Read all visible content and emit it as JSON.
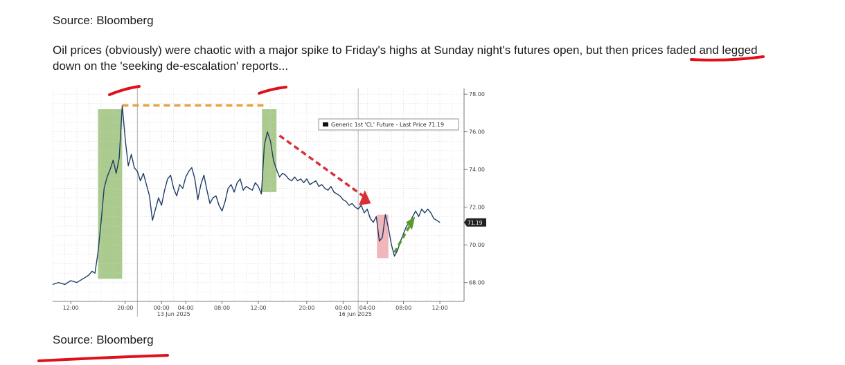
{
  "header": {
    "source": "Source: Bloomberg"
  },
  "paragraph": {
    "text_before": "Oil prices (obviously) were chaotic with a major spike to Friday's highs at Sunday night's futures open, but then ",
    "highlight": "prices faded",
    "text_after": " and legged down on the 'seeking de-escalation' reports..."
  },
  "footer": {
    "source": "Source: Bloomberg"
  },
  "colors": {
    "line": "#1f3d66",
    "green_band": "#9cc27a",
    "red_band": "#f0a8ae",
    "orange_dash": "#e8a040",
    "red_arrow": "#d8303a",
    "green_arrow": "#5a9a2a",
    "marker_red": "#e0101a"
  },
  "chart_data": {
    "type": "line",
    "legend": "Generic 1st 'CL' Future - Last Price 71.19",
    "last_price_label": "71.19",
    "last_price": 71.19,
    "ylim": [
      67.0,
      78.3
    ],
    "yticks": [
      "78.00",
      "76.00",
      "74.00",
      "72.00",
      "70.00",
      "68.00"
    ],
    "ytick_values": [
      78,
      76,
      74,
      72,
      70,
      68
    ],
    "xlim": [
      0,
      68
    ],
    "xticks": [
      {
        "x": 3,
        "label": "12:00"
      },
      {
        "x": 12,
        "label": "20:00"
      },
      {
        "x": 18,
        "label": "00:00"
      },
      {
        "x": 22,
        "label": "04:00"
      },
      {
        "x": 28,
        "label": "08:00"
      },
      {
        "x": 34,
        "label": "12:00"
      },
      {
        "x": 42,
        "label": "20:00"
      },
      {
        "x": 48,
        "label": "00:00"
      },
      {
        "x": 52,
        "label": "04:00"
      },
      {
        "x": 58,
        "label": "08:00"
      },
      {
        "x": 64,
        "label": "12:00"
      }
    ],
    "date_labels": [
      {
        "x": 20,
        "label": "13 Jun 2025"
      },
      {
        "x": 50,
        "label": "16 Jun 2025"
      }
    ],
    "series": [
      {
        "x": [
          0,
          1,
          2,
          3,
          4,
          5,
          6,
          6.5,
          7,
          7.5,
          8,
          8.5,
          9,
          9.5,
          10,
          10.5,
          11,
          11.5,
          12,
          12.5,
          13,
          13.5,
          14,
          14.5,
          15,
          15.5,
          16,
          16.5,
          17,
          17.5,
          18,
          18.5,
          19,
          19.5,
          20,
          20.5,
          21,
          21.5,
          22,
          22.5,
          23,
          23.5,
          24,
          24.5,
          25,
          25.5,
          26,
          26.5,
          27,
          27.5,
          28,
          28.5,
          29,
          29.5,
          30,
          30.5,
          31,
          31.5,
          32,
          32.5,
          33,
          33.5,
          34,
          34.5,
          35,
          35.5,
          36,
          36.5,
          37,
          37.5,
          38,
          38.5,
          39,
          39.5,
          40,
          40.5,
          41,
          41.5,
          42,
          42.5,
          43,
          43.5,
          44,
          44.5,
          45,
          45.5,
          46,
          46.5,
          47,
          47.5,
          48,
          48.5,
          49,
          49.5,
          50,
          50.5,
          51,
          51.5,
          52,
          52.5,
          53,
          53.5,
          54,
          54.5,
          55,
          55.5,
          56,
          56.5,
          57,
          57.5,
          58,
          58.5,
          59,
          59.5,
          60,
          60.5,
          61,
          61.5,
          62,
          62.5,
          63,
          63.5,
          64
        ],
        "y": [
          67.9,
          68.0,
          67.9,
          68.1,
          68.0,
          68.2,
          68.4,
          68.6,
          68.5,
          69.6,
          71.2,
          73.0,
          73.6,
          74.0,
          74.5,
          73.8,
          74.6,
          77.4,
          75.6,
          74.2,
          74.8,
          74.1,
          73.9,
          73.4,
          73.8,
          73.2,
          72.6,
          71.3,
          71.9,
          72.5,
          72.1,
          72.9,
          73.5,
          73.7,
          73.0,
          72.6,
          73.2,
          73.0,
          73.6,
          73.9,
          74.1,
          73.5,
          72.4,
          73.2,
          73.7,
          72.9,
          72.2,
          72.5,
          72.6,
          72.1,
          71.8,
          72.3,
          73.0,
          73.2,
          72.8,
          73.3,
          73.5,
          72.9,
          73.1,
          73.0,
          72.9,
          73.3,
          73.1,
          72.7,
          75.3,
          76.0,
          75.5,
          74.5,
          74.0,
          73.6,
          73.8,
          73.7,
          73.5,
          73.4,
          73.6,
          73.4,
          73.5,
          73.3,
          73.5,
          73.2,
          73.3,
          73.4,
          73.1,
          73.2,
          73.0,
          72.9,
          73.1,
          72.8,
          72.7,
          72.6,
          72.4,
          72.3,
          72.1,
          72.2,
          72.0,
          71.9,
          72.1,
          71.7,
          71.9,
          71.4,
          71.2,
          71.5,
          70.2,
          70.4,
          71.6,
          70.9,
          70.0,
          69.4,
          69.7,
          70.2,
          70.6,
          71.0,
          71.2,
          71.5,
          71.8,
          71.5,
          71.9,
          71.7,
          71.9,
          71.7,
          71.4,
          71.3,
          71.19
        ]
      }
    ]
  }
}
